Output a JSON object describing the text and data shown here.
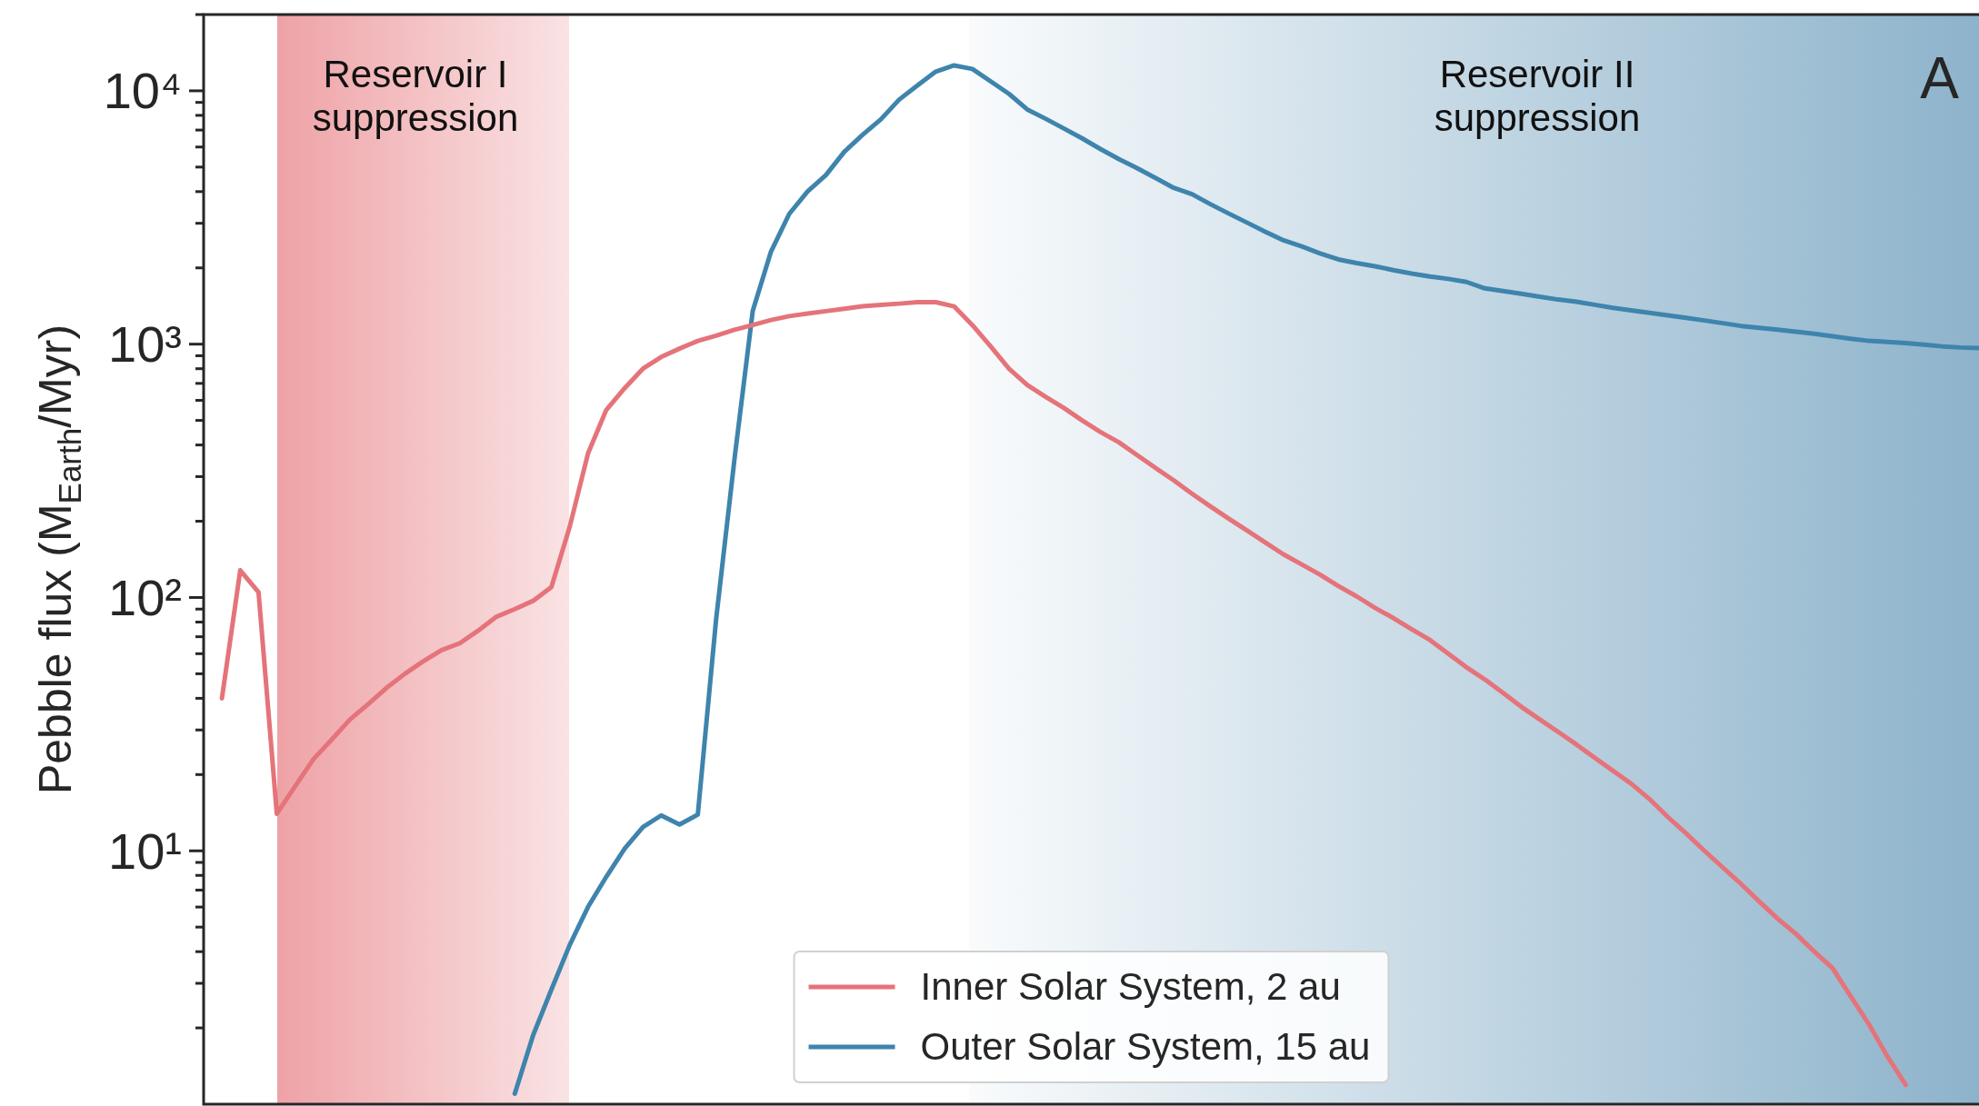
{
  "chart_data": {
    "type": "line",
    "ylabel": "Pebble flux (M$_{Earth}$/Myr)",
    "categories": [
      null,
      null,
      null,
      null,
      null,
      null,
      null,
      null,
      null,
      null,
      null,
      null,
      null,
      null,
      null,
      null,
      null,
      null,
      null,
      null,
      null,
      null,
      null,
      null,
      null,
      null,
      null,
      null,
      null,
      null,
      null,
      null,
      null,
      null,
      null,
      null,
      null,
      null,
      null,
      null,
      null,
      null,
      null,
      null,
      null,
      null,
      null,
      null,
      null,
      null,
      null,
      null,
      null,
      null,
      null,
      null,
      null,
      null,
      null,
      null,
      null,
      null,
      null,
      null,
      null,
      null,
      null,
      null,
      null,
      null,
      null,
      null,
      null,
      null,
      null,
      null,
      null,
      null,
      null,
      null,
      null,
      null,
      null,
      null,
      null,
      null,
      null,
      null,
      null,
      null,
      null,
      null,
      null,
      null,
      null,
      null,
      null,
      null
    ],
    "series": [
      {
        "name": "Inner Solar System, 2 au",
        "color": "#e5737a",
        "values": [
          null,
          40,
          128,
          105,
          14,
          18,
          23,
          27.5,
          33,
          38,
          44,
          50,
          56,
          62,
          66,
          74,
          84,
          90,
          97,
          110,
          190,
          370,
          550,
          670,
          800,
          890,
          960,
          1030,
          1080,
          1140,
          1190,
          1245,
          1290,
          1320,
          1350,
          1380,
          1410,
          1430,
          1445,
          1465,
          1465,
          1410,
          1190,
          980,
          800,
          690,
          620,
          560,
          500,
          450,
          410,
          365,
          325,
          290,
          257,
          229,
          205,
          184,
          165,
          148,
          135,
          123,
          111,
          101,
          91,
          83,
          75,
          68,
          60,
          53,
          47.5,
          42,
          37,
          33,
          29.5,
          26.3,
          23.3,
          20.7,
          18.4,
          16,
          13.6,
          11.7,
          10,
          8.6,
          7.4,
          6.3,
          5.4,
          4.7,
          4,
          3.44,
          2.66,
          2.06,
          1.54,
          1.19,
          null,
          null,
          null,
          null
        ]
      },
      {
        "name": "Outer Solar System, 15 au",
        "color": "#3e84ad",
        "values": [
          null,
          null,
          null,
          null,
          null,
          null,
          null,
          null,
          null,
          null,
          null,
          null,
          null,
          null,
          null,
          null,
          null,
          1.1,
          1.87,
          2.83,
          4.25,
          6.0,
          7.9,
          10.2,
          12.4,
          13.8,
          12.7,
          13.9,
          82,
          350,
          1350,
          2320,
          3270,
          4010,
          4650,
          5740,
          6700,
          7710,
          9230,
          10500,
          11900,
          12600,
          12200,
          10900,
          9730,
          8440,
          7760,
          7100,
          6490,
          5890,
          5380,
          4950,
          4530,
          4140,
          3910,
          3570,
          3280,
          3020,
          2780,
          2570,
          2430,
          2280,
          2160,
          2090,
          2030,
          1960,
          1900,
          1850,
          1810,
          1760,
          1660,
          1620,
          1580,
          1540,
          1500,
          1470,
          1430,
          1390,
          1360,
          1330,
          1300,
          1270,
          1240,
          1210,
          1180,
          1160,
          1140,
          1120,
          1100,
          1075,
          1050,
          1030,
          1020,
          1010,
          995,
          980,
          970,
          965
        ]
      }
    ],
    "log": "y",
    "ylim": [
      1,
      20000
    ],
    "yticks": [
      {
        "value": 2,
        "label": null
      },
      {
        "value": 3,
        "label": null
      },
      {
        "value": 4,
        "label": null
      },
      {
        "value": 5,
        "label": null
      },
      {
        "value": 6,
        "label": null
      },
      {
        "value": 7,
        "label": null
      },
      {
        "value": 8,
        "label": null
      },
      {
        "value": 9,
        "label": null
      },
      {
        "value": 10,
        "label": "10¹"
      },
      {
        "value": 20,
        "label": null
      },
      {
        "value": 30,
        "label": null
      },
      {
        "value": 40,
        "label": null
      },
      {
        "value": 50,
        "label": null
      },
      {
        "value": 60,
        "label": null
      },
      {
        "value": 70,
        "label": null
      },
      {
        "value": 80,
        "label": null
      },
      {
        "value": 90,
        "label": null
      },
      {
        "value": 100,
        "label": "10²"
      },
      {
        "value": 200,
        "label": null
      },
      {
        "value": 300,
        "label": null
      },
      {
        "value": 400,
        "label": null
      },
      {
        "value": 500,
        "label": null
      },
      {
        "value": 600,
        "label": null
      },
      {
        "value": 700,
        "label": null
      },
      {
        "value": 800,
        "label": null
      },
      {
        "value": 900,
        "label": null
      },
      {
        "value": 1000,
        "label": "10³"
      },
      {
        "value": 2000,
        "label": null
      },
      {
        "value": 3000,
        "label": null
      },
      {
        "value": 4000,
        "label": null
      },
      {
        "value": 5000,
        "label": null
      },
      {
        "value": 6000,
        "label": null
      },
      {
        "value": 7000,
        "label": null
      },
      {
        "value": 8000,
        "label": null
      },
      {
        "value": 9000,
        "label": null
      },
      {
        "value": 10000,
        "label": "10⁴"
      },
      {
        "value": 20000,
        "label": null
      }
    ],
    "tick_labels": "y",
    "annotations": [
      "Reservoir I\nsuppression",
      "Reservoir II\nsuppression",
      "A"
    ],
    "legend": "bottom",
    "grid": false,
    "marker": "none",
    "line_style": "solid"
  }
}
